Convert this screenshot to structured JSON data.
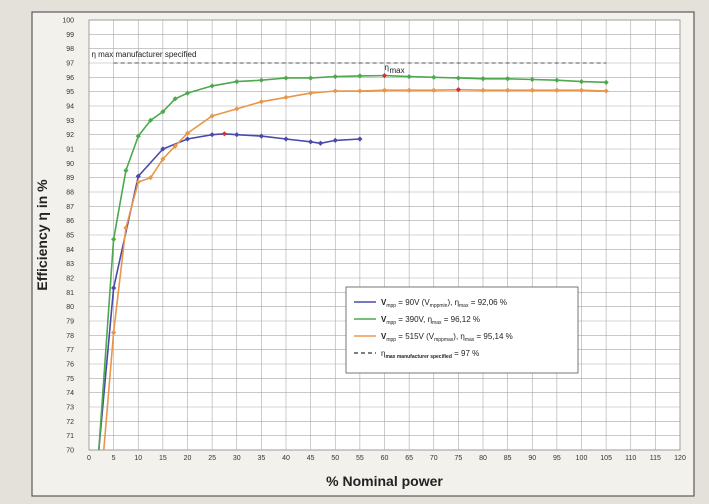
{
  "chart_data": {
    "type": "line",
    "title": "",
    "xlabel": "% Nominal power",
    "ylabel": "Efficiency  η in %",
    "xlim": [
      0,
      120
    ],
    "ylim": [
      70,
      100
    ],
    "x_ticks": [
      0,
      5,
      10,
      15,
      20,
      25,
      30,
      35,
      40,
      45,
      50,
      55,
      60,
      65,
      70,
      75,
      80,
      85,
      90,
      95,
      100,
      105,
      110,
      115,
      120
    ],
    "y_ticks": [
      70,
      71,
      72,
      73,
      74,
      75,
      76,
      77,
      78,
      79,
      80,
      81,
      82,
      83,
      84,
      85,
      86,
      87,
      88,
      89,
      90,
      91,
      92,
      93,
      94,
      95,
      96,
      97,
      98,
      99,
      100
    ],
    "grid": true,
    "legend_position": "lower-right",
    "reference_line": {
      "value": 97,
      "label": "η max manufacturer specified",
      "x_range": [
        5,
        105
      ],
      "color": "#555555"
    },
    "annotations": [
      {
        "text": "η",
        "sub": "max",
        "x": 60,
        "y": 96.5
      }
    ],
    "series": [
      {
        "legend": "V",
        "legend_sub": "mpp",
        "legend_rest": " =  90V (V",
        "legend_sub2": "mppmin",
        "legend_rest2": "),  η",
        "legend_sub3": "max",
        "legend_rest3": " = 92,06 %",
        "color": "#4a4aa8",
        "x": [
          2,
          5,
          10,
          15,
          20,
          25,
          27.5,
          30,
          35,
          40,
          45,
          47,
          50,
          55
        ],
        "y": [
          70,
          81.3,
          89.1,
          91.0,
          91.7,
          92.0,
          92.06,
          92.0,
          91.9,
          91.7,
          91.5,
          91.4,
          91.6,
          91.7
        ],
        "max_index": 6
      },
      {
        "legend": "V",
        "legend_sub": "mpp",
        "legend_rest": " = 390V,",
        "legend_sub2": "",
        "legend_rest2": "                    η",
        "legend_sub3": "max",
        "legend_rest3": " = 96,12 %",
        "color": "#4ea84e",
        "x": [
          2,
          5,
          7.5,
          10,
          12.5,
          15,
          17.5,
          20,
          25,
          30,
          35,
          40,
          45,
          50,
          55,
          60,
          65,
          70,
          75,
          80,
          85,
          90,
          95,
          100,
          105
        ],
        "y": [
          70,
          84.7,
          89.5,
          91.9,
          93.0,
          93.6,
          94.5,
          94.9,
          95.4,
          95.7,
          95.8,
          95.95,
          95.95,
          96.05,
          96.1,
          96.12,
          96.05,
          96.0,
          95.95,
          95.9,
          95.9,
          95.85,
          95.8,
          95.7,
          95.65
        ],
        "max_index": 15
      },
      {
        "legend": "V",
        "legend_sub": "mpp",
        "legend_rest": " = 515V (V",
        "legend_sub2": "mppmax",
        "legend_rest2": "),  η",
        "legend_sub3": "max",
        "legend_rest3": " = 95,14 %",
        "color": "#e8974a",
        "x": [
          3,
          5,
          7.5,
          10,
          12.5,
          15,
          17.5,
          20,
          25,
          30,
          35,
          40,
          45,
          50,
          55,
          60,
          65,
          70,
          75,
          80,
          85,
          90,
          95,
          100,
          105
        ],
        "y": [
          70,
          78.2,
          85.5,
          88.7,
          89.0,
          90.3,
          91.2,
          92.1,
          93.3,
          93.8,
          94.3,
          94.6,
          94.9,
          95.05,
          95.05,
          95.1,
          95.1,
          95.1,
          95.14,
          95.1,
          95.1,
          95.1,
          95.1,
          95.1,
          95.05
        ],
        "max_index": 18
      }
    ],
    "reference_legend": {
      "prefix": "η",
      "sub": "max manufacturer specified",
      "rest": " = 97 %"
    }
  },
  "colors": {
    "max_marker": "#d83030",
    "grid": "#a9a9a9",
    "plot_bg": "#ffffff",
    "frame": "#5a5a5a"
  }
}
